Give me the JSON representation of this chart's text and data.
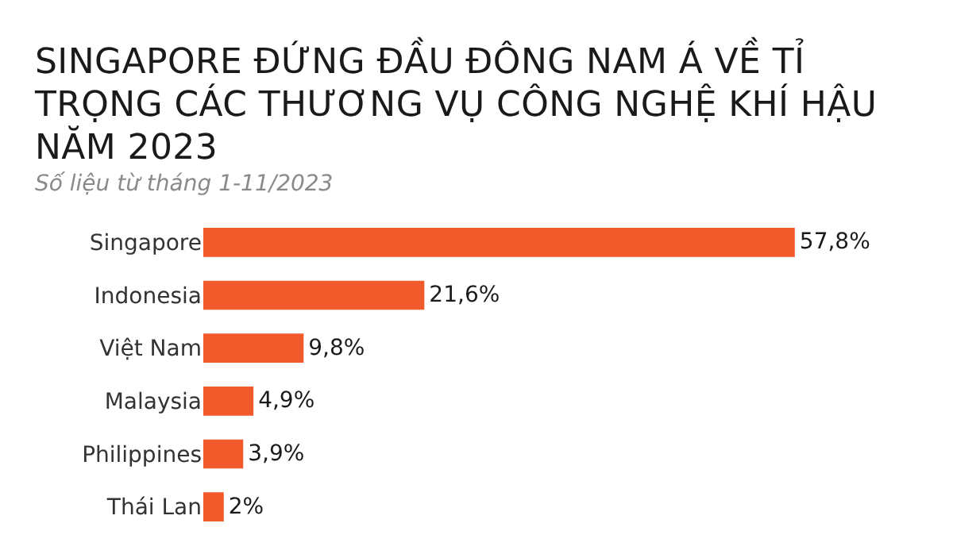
{
  "chart_data": {
    "type": "bar",
    "orientation": "horizontal",
    "title": "SINGAPORE ĐỨNG ĐẦU ĐÔNG NAM Á VỀ TỈ TRỌNG CÁC THƯƠNG VỤ CÔNG NGHỆ KHÍ HẬU NĂM 2023",
    "subtitle": "Số liệu từ tháng 1-11/2023",
    "categories": [
      "Singapore",
      "Indonesia",
      "Việt Nam",
      "Malaysia",
      "Philippines",
      "Thái Lan"
    ],
    "values": [
      57.8,
      21.6,
      9.8,
      4.9,
      3.9,
      2
    ],
    "value_labels": [
      "57,8%",
      "21,6%",
      "9,8%",
      "4,9%",
      "3,9%",
      "2%"
    ],
    "color": "#f15a2b",
    "tick_labels": "y",
    "grid": false,
    "legend": false
  }
}
